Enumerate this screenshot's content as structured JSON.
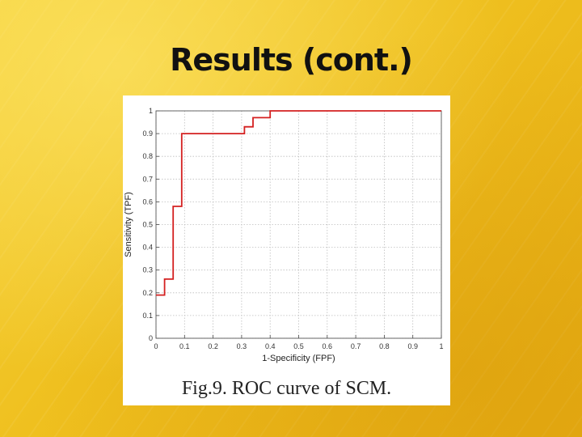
{
  "slide": {
    "title": "Results (cont.)"
  },
  "figure": {
    "caption": "Fig.9. ROC curve of SCM."
  },
  "chart_data": {
    "type": "line",
    "title": "",
    "xlabel": "1-Specificity (FPF)",
    "ylabel": "Sensitivity (TPF)",
    "xlim": [
      0,
      1
    ],
    "ylim": [
      0,
      1
    ],
    "xticks": [
      "0",
      "0.1",
      "0.2",
      "0.3",
      "0.4",
      "0.5",
      "0.6",
      "0.7",
      "0.8",
      "0.9",
      "1"
    ],
    "yticks": [
      "0",
      "0.1",
      "0.2",
      "0.3",
      "0.4",
      "0.5",
      "0.6",
      "0.7",
      "0.8",
      "0.9",
      "1"
    ],
    "grid": true,
    "series": [
      {
        "color": "#d42020",
        "x": [
          0,
          0.03,
          0.03,
          0.06,
          0.06,
          0.09,
          0.09,
          0.31,
          0.31,
          0.34,
          0.34,
          0.4,
          0.4,
          1.0
        ],
        "y": [
          0.19,
          0.19,
          0.26,
          0.26,
          0.58,
          0.58,
          0.9,
          0.9,
          0.93,
          0.93,
          0.97,
          0.97,
          1.0,
          1.0
        ]
      }
    ]
  }
}
